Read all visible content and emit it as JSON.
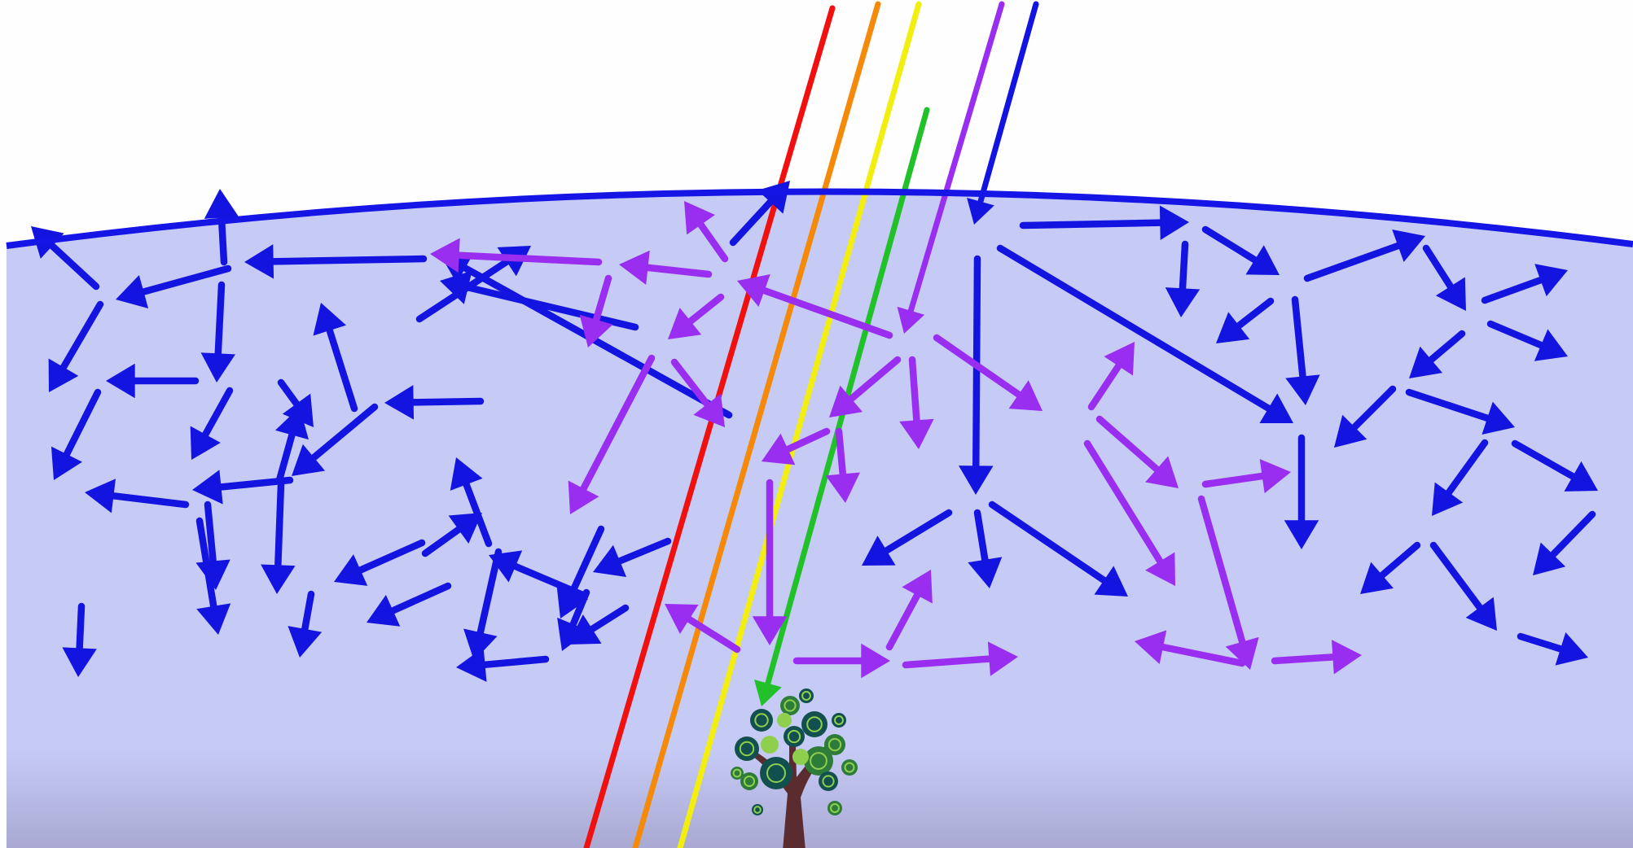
{
  "colors": {
    "sky": "#fefefe",
    "atmosphere_top": "#c6cbf6",
    "atmosphere_bottom": "#a9a9d3",
    "horizon": "#1515e6",
    "blue": "#1414e0",
    "purple": "#9a2ef0",
    "red": "#f01010",
    "orange": "#f58a0a",
    "yellow": "#f2ee10",
    "green": "#22c12a",
    "tree_trunk": "#5b2c2f",
    "tree_leaf_dark": "#12504f",
    "tree_leaf_mid": "#2e7c3a",
    "tree_leaf_light": "#8fcf4e"
  },
  "rays": [
    {
      "color": "red",
      "kind": "sunlight-ray"
    },
    {
      "color": "orange",
      "kind": "sunlight-ray"
    },
    {
      "color": "yellow",
      "kind": "sunlight-ray"
    },
    {
      "color": "green",
      "kind": "sunlight-ray"
    },
    {
      "color": "purple",
      "kind": "sunlight-ray"
    },
    {
      "color": "blue",
      "kind": "sunlight-ray"
    }
  ],
  "icons": [
    "tree-icon"
  ]
}
